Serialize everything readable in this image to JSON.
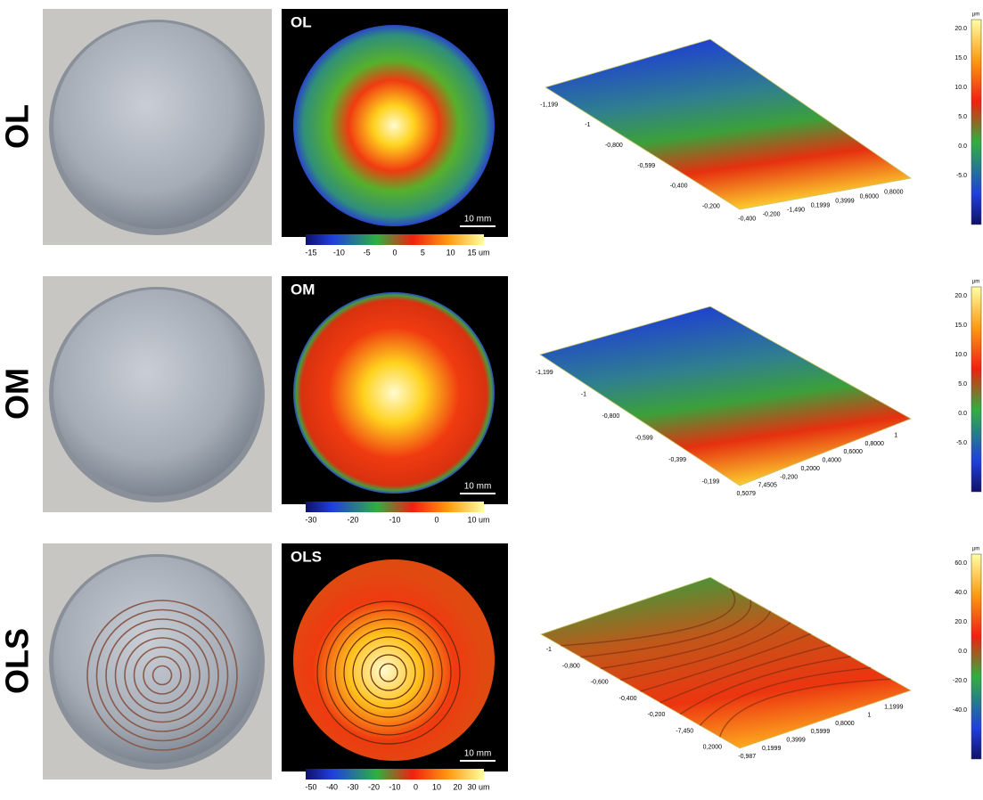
{
  "rows": [
    {
      "label": "OL",
      "map_label": "OL",
      "scale_bar": "10 mm",
      "colorbar_ticks": [
        "-15",
        "-10",
        "-5",
        "0",
        "5",
        "10",
        "15 um"
      ],
      "surface_left_ticks": [
        "-1,199",
        "-1",
        "-0,800",
        "-0,599",
        "-0,400",
        "-0,200"
      ],
      "surface_bottom_ticks": [
        "-0,400",
        "-0,200",
        "-1,490",
        "0,1999",
        "0,3999",
        "0,6000",
        "0,8000"
      ],
      "legend_unit": "µm",
      "legend_ticks": [
        "20.0",
        "15.0",
        "10.0",
        "5.0",
        "0.0",
        "-5.0"
      ]
    },
    {
      "label": "OM",
      "map_label": "OM",
      "scale_bar": "10 mm",
      "colorbar_ticks": [
        "-30",
        "-20",
        "-10",
        "0",
        "10 um"
      ],
      "surface_left_ticks": [
        "-1,199",
        "-1",
        "-0,800",
        "-0,599",
        "-0,399",
        "-0,199"
      ],
      "surface_bottom_ticks": [
        "0,5079",
        "7,4505",
        "-0,200",
        "0,2000",
        "0,4000",
        "0,6000",
        "0,8000",
        "1"
      ],
      "legend_unit": "µm",
      "legend_ticks": [
        "20.0",
        "15.0",
        "10.0",
        "5.0",
        "0.0",
        "-5.0"
      ]
    },
    {
      "label": "OLS",
      "map_label": "OLS",
      "scale_bar": "10 mm",
      "colorbar_ticks": [
        "-50",
        "-40",
        "-30",
        "-20",
        "-10",
        "0",
        "10",
        "20",
        "30 um"
      ],
      "surface_left_ticks": [
        "-1",
        "-0,800",
        "-0,600",
        "-0,400",
        "-0,200",
        "-7,450",
        "0,2000"
      ],
      "surface_bottom_ticks": [
        "-0,987",
        "0,1999",
        "0,3999",
        "0,5999",
        "0,8000",
        "1",
        "1,1999"
      ],
      "legend_unit": "µm",
      "legend_ticks": [
        "60.0",
        "40.0",
        "20.0",
        "0.0",
        "-20.0",
        "-40.0"
      ]
    }
  ]
}
